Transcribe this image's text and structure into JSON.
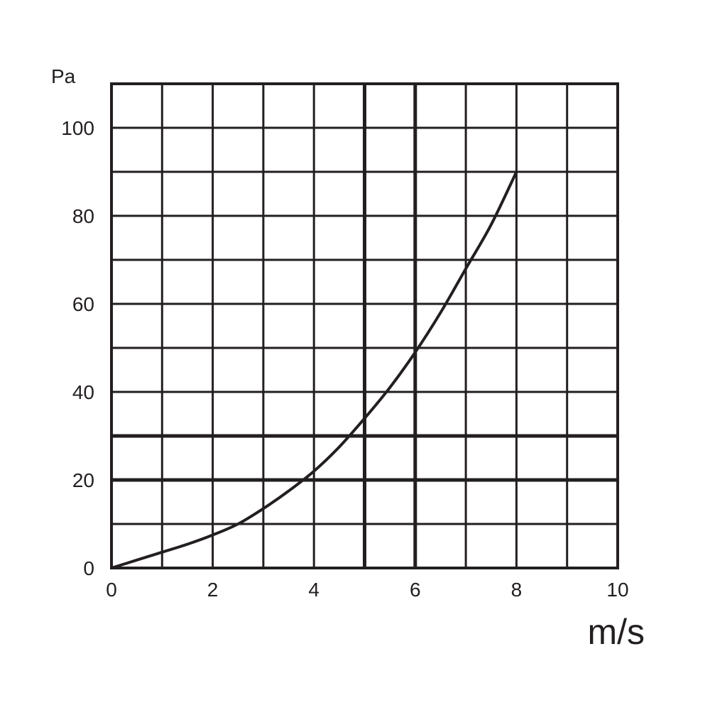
{
  "chart_data": {
    "type": "line",
    "xlabel": "m/s",
    "ylabel": "Pa",
    "xlim": [
      0,
      10
    ],
    "ylim": [
      0,
      110
    ],
    "x_ticks": [
      0,
      2,
      4,
      6,
      8,
      10
    ],
    "x_tick_labels": [
      "0",
      "2",
      "4",
      "6",
      "8",
      "10"
    ],
    "y_ticks": [
      0,
      20,
      40,
      60,
      80,
      100
    ],
    "y_tick_labels": [
      "0",
      "20",
      "40",
      "60",
      "80",
      "100"
    ],
    "x_grid_step": 1,
    "y_grid_step": 10,
    "emphasized_gridlines_y": [
      20,
      30
    ],
    "emphasized_gridlines_x": [
      5,
      6
    ],
    "grid": true,
    "series": [
      {
        "x": [
          0,
          0.5,
          1,
          1.5,
          2,
          2.5,
          3,
          3.5,
          4,
          4.5,
          5,
          5.5,
          6,
          6.5,
          7,
          7.5,
          8
        ],
        "y": [
          0,
          1.8,
          3.6,
          5.4,
          7.5,
          10,
          13.5,
          17.5,
          22,
          27.5,
          34,
          41,
          49,
          58,
          68,
          78,
          90
        ],
        "color": "#231f20"
      }
    ]
  }
}
